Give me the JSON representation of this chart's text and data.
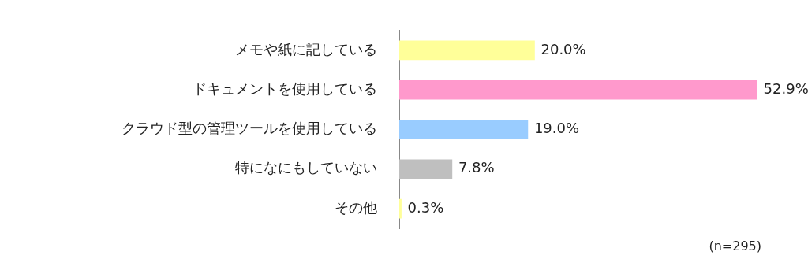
{
  "chart_data": {
    "type": "bar",
    "orientation": "horizontal",
    "categories": [
      "メモや紙に記している",
      "ドキュメントを使用している",
      "クラウド型の管理ツールを使用している",
      "特になにもしていない",
      "その他"
    ],
    "values": [
      20.0,
      52.9,
      19.0,
      7.8,
      0.3
    ],
    "colors": [
      "#ffff99",
      "#ff99cc",
      "#99ccff",
      "#bfbfbf",
      "#ffff99"
    ],
    "value_labels": [
      "20.0%",
      "52.9%",
      "19.0%",
      "7.8%",
      "0.3%"
    ],
    "grid": false,
    "legend": false,
    "annotations": [
      "(n=295)"
    ]
  }
}
